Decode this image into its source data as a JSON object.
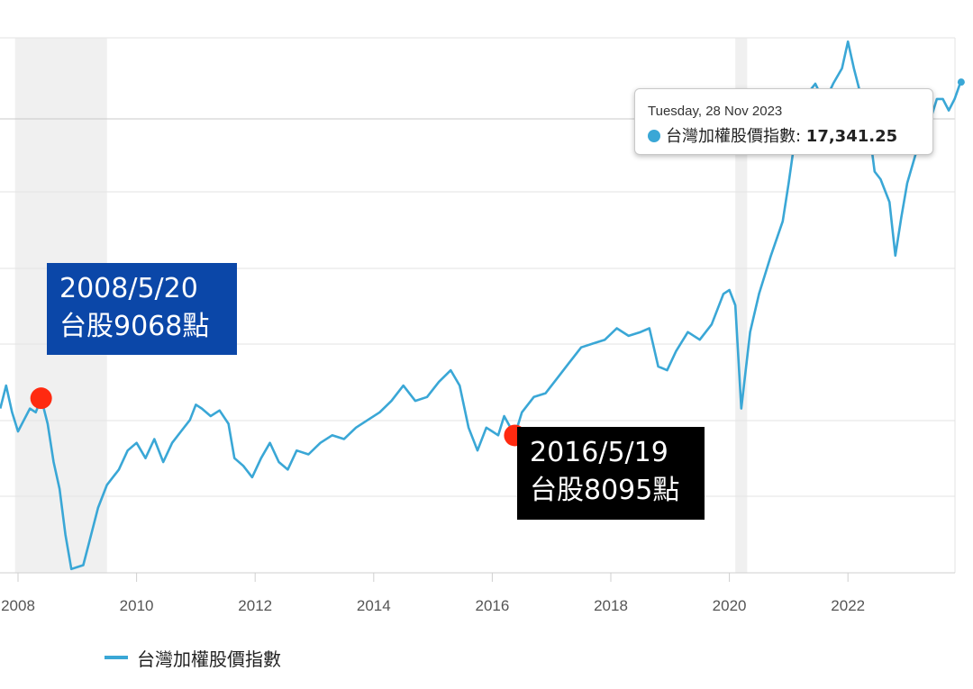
{
  "chart_data": {
    "type": "line",
    "title": "",
    "xlabel": "",
    "ylabel": "",
    "x_ticks": [
      "2008",
      "2010",
      "2012",
      "2014",
      "2016",
      "2018",
      "2020",
      "2022"
    ],
    "ylim": [
      4500,
      18500
    ],
    "xlim": [
      2007.7,
      2023.95
    ],
    "grid": true,
    "legend_position": "bottom-left",
    "shaded_ranges": [
      [
        2007.95,
        2009.5
      ],
      [
        2020.1,
        2020.3
      ]
    ],
    "series": [
      {
        "name": "台灣加權股價指數",
        "color": "#3aa7d6",
        "points": [
          [
            2007.7,
            8800
          ],
          [
            2007.8,
            9400
          ],
          [
            2007.9,
            8700
          ],
          [
            2008.0,
            8200
          ],
          [
            2008.1,
            8500
          ],
          [
            2008.2,
            8800
          ],
          [
            2008.3,
            8700
          ],
          [
            2008.39,
            9068
          ],
          [
            2008.5,
            8400
          ],
          [
            2008.6,
            7400
          ],
          [
            2008.7,
            6700
          ],
          [
            2008.8,
            5500
          ],
          [
            2008.9,
            4600
          ],
          [
            2009.0,
            4650
          ],
          [
            2009.1,
            4700
          ],
          [
            2009.2,
            5300
          ],
          [
            2009.35,
            6200
          ],
          [
            2009.5,
            6800
          ],
          [
            2009.7,
            7200
          ],
          [
            2009.85,
            7700
          ],
          [
            2010.0,
            7900
          ],
          [
            2010.15,
            7500
          ],
          [
            2010.3,
            8000
          ],
          [
            2010.45,
            7400
          ],
          [
            2010.6,
            7900
          ],
          [
            2010.75,
            8200
          ],
          [
            2010.9,
            8500
          ],
          [
            2011.0,
            8900
          ],
          [
            2011.1,
            8800
          ],
          [
            2011.25,
            8600
          ],
          [
            2011.4,
            8750
          ],
          [
            2011.55,
            8400
          ],
          [
            2011.65,
            7500
          ],
          [
            2011.8,
            7300
          ],
          [
            2011.95,
            7000
          ],
          [
            2012.1,
            7500
          ],
          [
            2012.25,
            7900
          ],
          [
            2012.4,
            7400
          ],
          [
            2012.55,
            7200
          ],
          [
            2012.7,
            7700
          ],
          [
            2012.9,
            7600
          ],
          [
            2013.1,
            7900
          ],
          [
            2013.3,
            8100
          ],
          [
            2013.5,
            8000
          ],
          [
            2013.7,
            8300
          ],
          [
            2013.9,
            8500
          ],
          [
            2014.1,
            8700
          ],
          [
            2014.3,
            9000
          ],
          [
            2014.5,
            9400
          ],
          [
            2014.7,
            9000
          ],
          [
            2014.9,
            9100
          ],
          [
            2015.1,
            9500
          ],
          [
            2015.3,
            9800
          ],
          [
            2015.45,
            9400
          ],
          [
            2015.6,
            8300
          ],
          [
            2015.75,
            7700
          ],
          [
            2015.9,
            8300
          ],
          [
            2016.0,
            8200
          ],
          [
            2016.1,
            8100
          ],
          [
            2016.2,
            8600
          ],
          [
            2016.38,
            8095
          ],
          [
            2016.5,
            8700
          ],
          [
            2016.7,
            9100
          ],
          [
            2016.9,
            9200
          ],
          [
            2017.1,
            9600
          ],
          [
            2017.3,
            10000
          ],
          [
            2017.5,
            10400
          ],
          [
            2017.7,
            10500
          ],
          [
            2017.9,
            10600
          ],
          [
            2018.1,
            10900
          ],
          [
            2018.3,
            10700
          ],
          [
            2018.5,
            10800
          ],
          [
            2018.65,
            10900
          ],
          [
            2018.8,
            9900
          ],
          [
            2018.95,
            9800
          ],
          [
            2019.1,
            10300
          ],
          [
            2019.3,
            10800
          ],
          [
            2019.5,
            10600
          ],
          [
            2019.7,
            11000
          ],
          [
            2019.9,
            11800
          ],
          [
            2020.0,
            11900
          ],
          [
            2020.1,
            11500
          ],
          [
            2020.2,
            8800
          ],
          [
            2020.35,
            10800
          ],
          [
            2020.5,
            11800
          ],
          [
            2020.7,
            12800
          ],
          [
            2020.9,
            13700
          ],
          [
            2021.0,
            14700
          ],
          [
            2021.1,
            15800
          ],
          [
            2021.3,
            17000
          ],
          [
            2021.45,
            17300
          ],
          [
            2021.6,
            16800
          ],
          [
            2021.75,
            17300
          ],
          [
            2021.9,
            17700
          ],
          [
            2022.0,
            18400
          ],
          [
            2022.1,
            17700
          ],
          [
            2022.25,
            16800
          ],
          [
            2022.35,
            16200
          ],
          [
            2022.45,
            15000
          ],
          [
            2022.55,
            14800
          ],
          [
            2022.7,
            14200
          ],
          [
            2022.8,
            12800
          ],
          [
            2022.9,
            13800
          ],
          [
            2023.0,
            14700
          ],
          [
            2023.15,
            15500
          ],
          [
            2023.3,
            15900
          ],
          [
            2023.5,
            16900
          ],
          [
            2023.6,
            16900
          ],
          [
            2023.7,
            16600
          ],
          [
            2023.8,
            16900
          ],
          [
            2023.9,
            17341.25
          ]
        ]
      }
    ],
    "annotations": [
      {
        "x": 2008.39,
        "y": 9068,
        "line1": "2008/5/20",
        "line2": "台股9068點",
        "color": "#0b47a8"
      },
      {
        "x": 2016.38,
        "y": 8095,
        "line1": "2016/5/19",
        "line2": "台股8095點",
        "color": "#000000"
      }
    ],
    "tooltip": {
      "date": "Tuesday, 28 Nov 2023",
      "series_label": "台灣加權股價指數: ",
      "value": "17,341.25",
      "x": 2023.91,
      "y": 17341.25
    }
  }
}
